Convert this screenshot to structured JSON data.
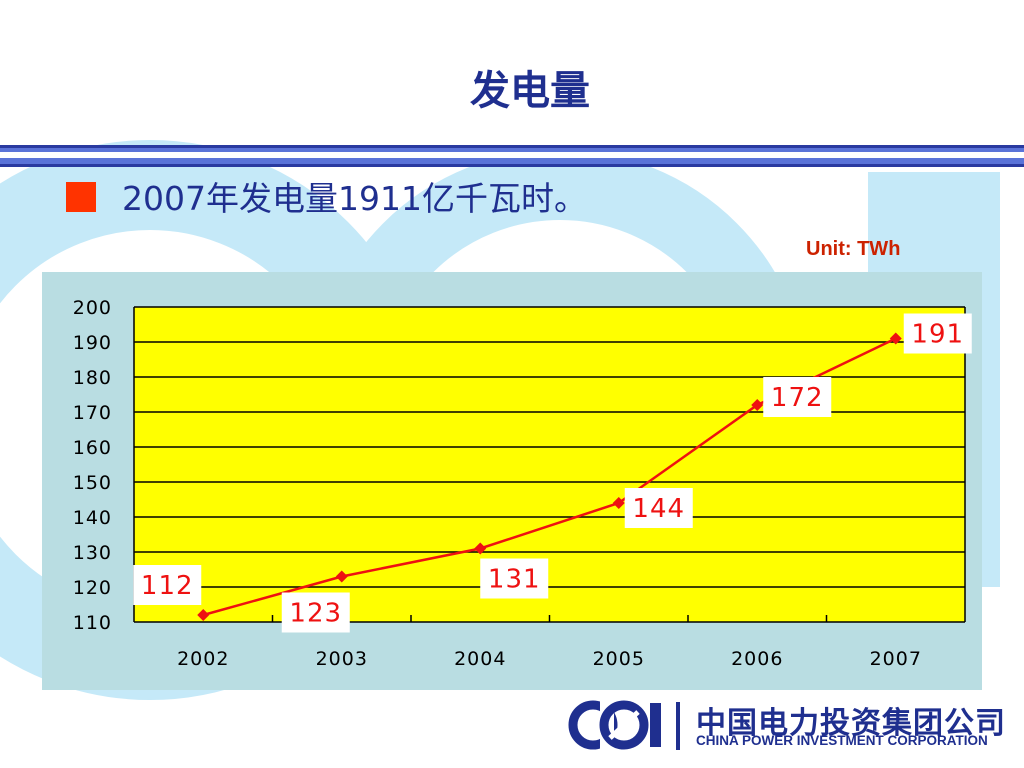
{
  "slide": {
    "title": "发电量",
    "bullet": "2007年发电量1911亿千瓦时。",
    "unit": "Unit: TWh",
    "accent_color": "#ff3300",
    "title_color": "#1f2f8f"
  },
  "logo": {
    "cn": "中国电力投资集团公司",
    "en": "CHINA POWER INVESTMENT CORPORATION",
    "icon": "cpi-logo-icon"
  },
  "chart_data": {
    "type": "line",
    "categories": [
      "2002",
      "2003",
      "2004",
      "2005",
      "2006",
      "2007"
    ],
    "series": [
      {
        "values": [
          112,
          123,
          131,
          144,
          172,
          191
        ],
        "color": "#ee1111"
      }
    ],
    "data_labels": [
      "112",
      "123",
      "131",
      "144",
      "172",
      "191"
    ],
    "y_ticks": [
      "200",
      "190",
      "180",
      "170",
      "160",
      "150",
      "140",
      "130",
      "120",
      "110"
    ],
    "ylim": [
      110,
      200
    ],
    "grid": true,
    "plot_background": "#ffff00",
    "panel_background": "#b9dde2"
  }
}
